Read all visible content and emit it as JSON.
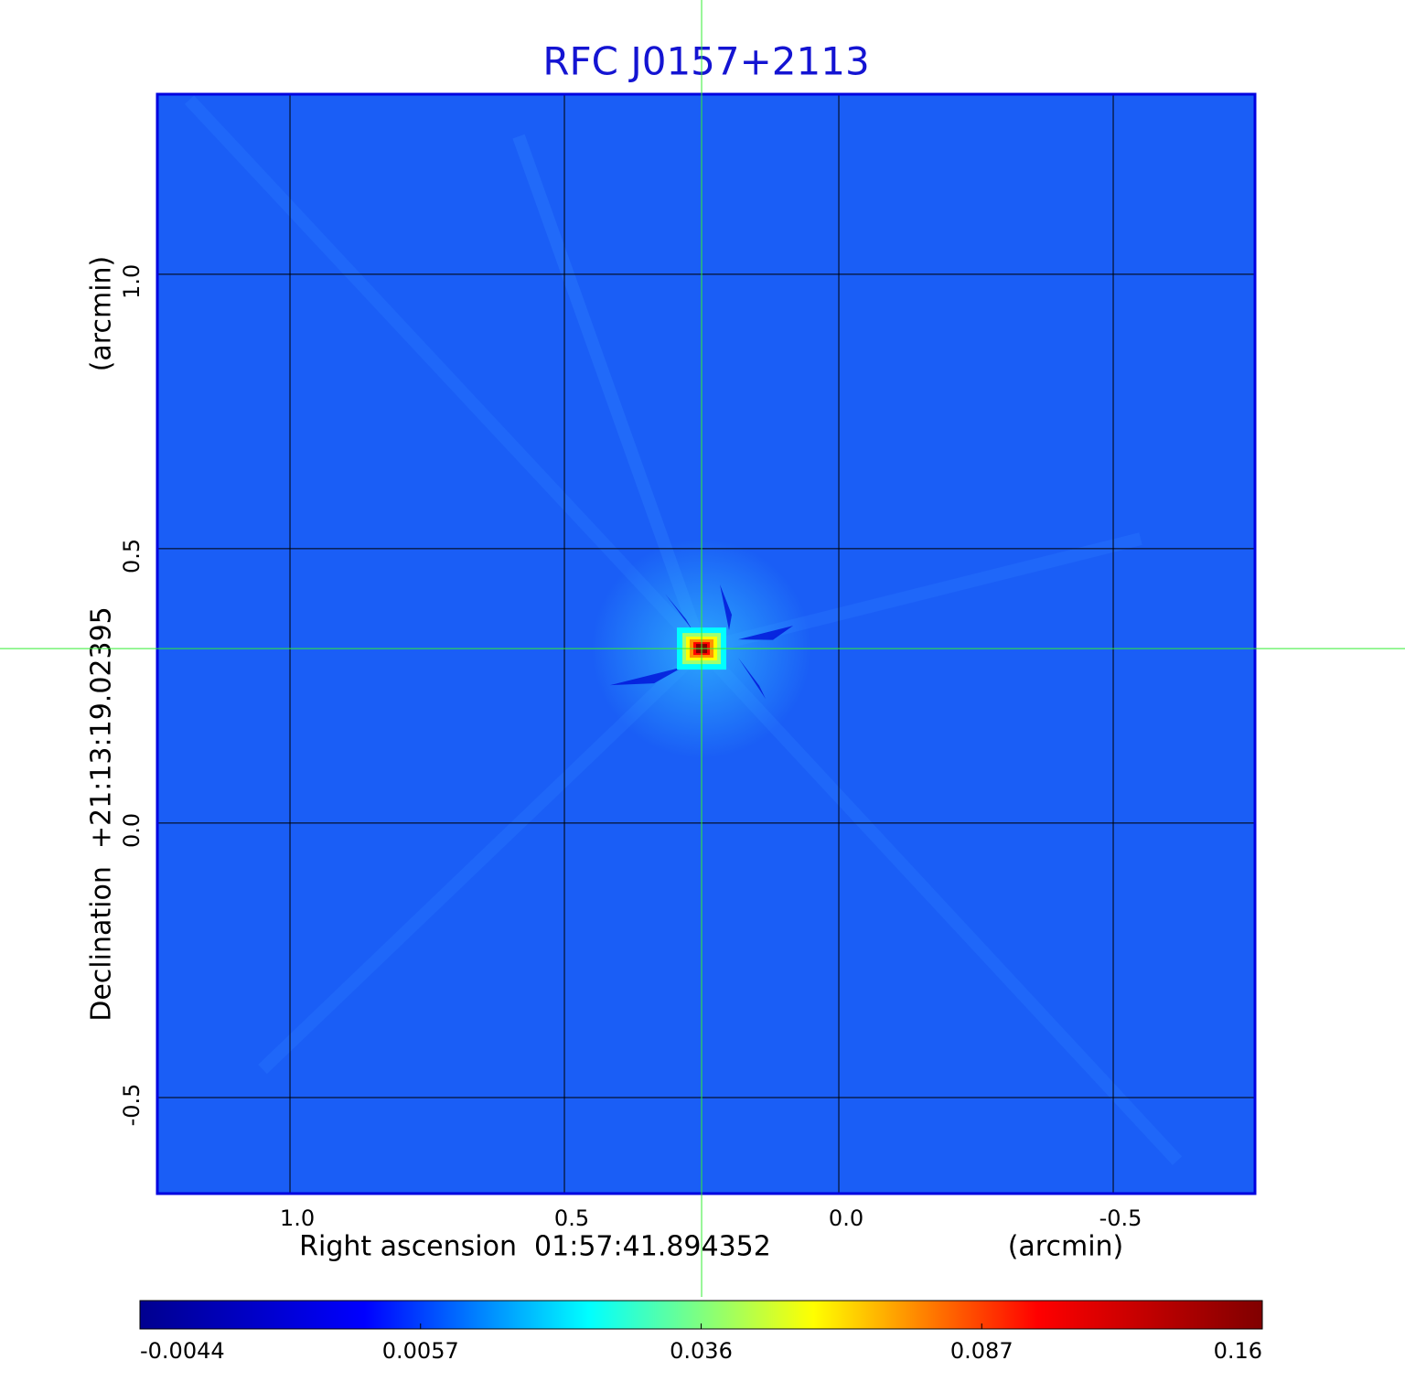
{
  "chart_data": {
    "type": "image",
    "title": "RFC J0157+2113",
    "x_label": "Right ascension  01:57:41.894352",
    "x_unit": "(arcmin)",
    "y_label": "Declination  +21:13:19.02395",
    "y_unit": "(arcmin)",
    "xlim": [
      1.2417,
      -0.7583
    ],
    "ylim": [
      -0.675,
      1.328
    ],
    "xticks": [
      {
        "value": 1,
        "label": "1.0"
      },
      0.5,
      {
        "value": 0,
        "label": "0.0"
      },
      -0.5
    ],
    "yticks": [
      {
        "value": 1,
        "label": "1.0"
      },
      0.5,
      {
        "value": 0,
        "label": "0.0"
      },
      -0.5
    ],
    "grid": true,
    "background_color": "#1a5ef6",
    "crosshair": {
      "x": 0.25,
      "y": 0.318,
      "color": "#33ee33"
    },
    "source": {
      "ra": 0.25,
      "dec": 0.318,
      "peak": 0.16
    },
    "colormap": [
      "#00008f",
      "#0000ff",
      "#00ffff",
      "#ffff00",
      "#ff0000",
      "#800000"
    ],
    "colorbar_ticks": [
      -0.0044,
      0.0057,
      0.036,
      0.087,
      0.16
    ]
  }
}
